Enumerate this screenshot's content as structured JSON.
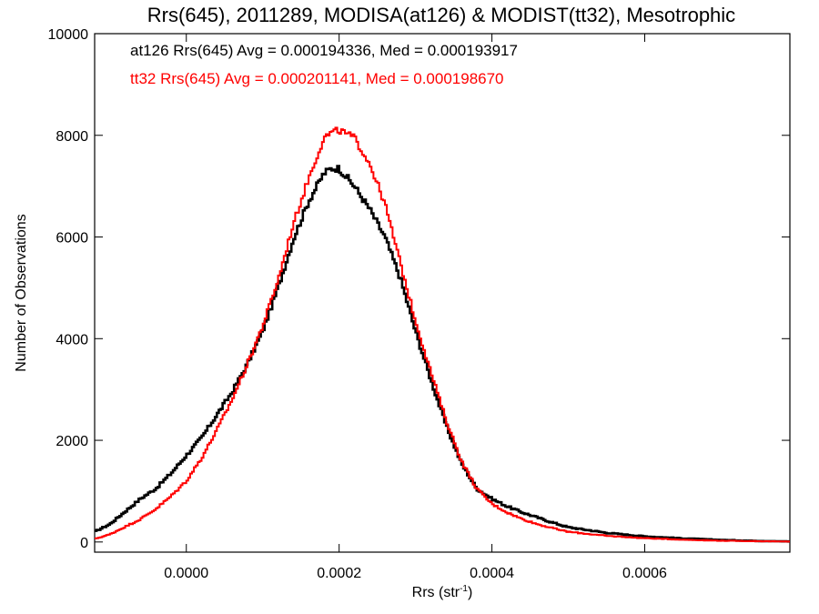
{
  "chart_data": {
    "type": "line",
    "title": "Rrs(645), 2011289, MODISA(at126) & MODIST(tt32), Mesotrophic",
    "xlabel": "Rrs (str",
    "xlabel_sup": "-1",
    "xlabel_close": ")",
    "ylabel": "Number of Observations",
    "xlim": [
      -0.00012,
      0.00079
    ],
    "ylim": [
      -200,
      10000
    ],
    "xticks": [
      0.0,
      0.0002,
      0.0004,
      0.0006
    ],
    "xtick_labels": [
      "0.0000",
      "0.0002",
      "0.0004",
      "0.0006"
    ],
    "yticks": [
      0,
      2000,
      4000,
      6000,
      8000,
      10000
    ],
    "ytick_labels": [
      "0",
      "2000",
      "4000",
      "6000",
      "8000",
      "10000"
    ],
    "grid": false,
    "legend_position": "top-left",
    "series": [
      {
        "name": "at126 Rrs(645) Avg = 0.000194336, Med = 0.000193917",
        "color": "#000000",
        "x": [
          -0.00012,
          -0.0001,
          -8e-05,
          -6e-05,
          -4e-05,
          -2e-05,
          0.0,
          2e-05,
          4e-05,
          6e-05,
          8e-05,
          0.0001,
          0.00012,
          0.00014,
          0.00016,
          0.00018,
          0.00019,
          0.0002,
          0.00022,
          0.00024,
          0.00026,
          0.00028,
          0.0003,
          0.00032,
          0.00034,
          0.00036,
          0.00038,
          0.0004,
          0.00042,
          0.00044,
          0.00046,
          0.00048,
          0.0005,
          0.00055,
          0.0006,
          0.00065,
          0.0007,
          0.00075,
          0.00079
        ],
        "y": [
          200,
          350,
          600,
          850,
          1050,
          1350,
          1700,
          2050,
          2500,
          2950,
          3500,
          4150,
          5000,
          5950,
          6700,
          7250,
          7350,
          7350,
          7000,
          6550,
          6000,
          5200,
          4150,
          3200,
          2300,
          1550,
          1050,
          850,
          700,
          580,
          480,
          380,
          290,
          180,
          110,
          70,
          40,
          20,
          10
        ]
      },
      {
        "name": "tt32 Rrs(645) Avg = 0.000201141, Med = 0.000198670",
        "color": "#ff0000",
        "x": [
          -0.00012,
          -0.0001,
          -8e-05,
          -6e-05,
          -4e-05,
          -2e-05,
          0.0,
          2e-05,
          4e-05,
          6e-05,
          8e-05,
          0.0001,
          0.00012,
          0.00014,
          0.00016,
          0.00018,
          0.00019,
          0.0002,
          0.00022,
          0.00024,
          0.00026,
          0.00028,
          0.0003,
          0.00032,
          0.00034,
          0.00036,
          0.00038,
          0.0004,
          0.00042,
          0.00044,
          0.00046,
          0.00048,
          0.0005,
          0.00055,
          0.0006,
          0.00065,
          0.0007,
          0.00075,
          0.00079
        ],
        "y": [
          60,
          150,
          300,
          450,
          650,
          900,
          1200,
          1650,
          2200,
          2800,
          3500,
          4250,
          5150,
          6250,
          7150,
          7950,
          8050,
          8100,
          7950,
          7450,
          6650,
          5500,
          4350,
          3350,
          2400,
          1600,
          1050,
          750,
          580,
          450,
          350,
          270,
          200,
          120,
          75,
          45,
          25,
          15,
          8
        ]
      }
    ]
  }
}
